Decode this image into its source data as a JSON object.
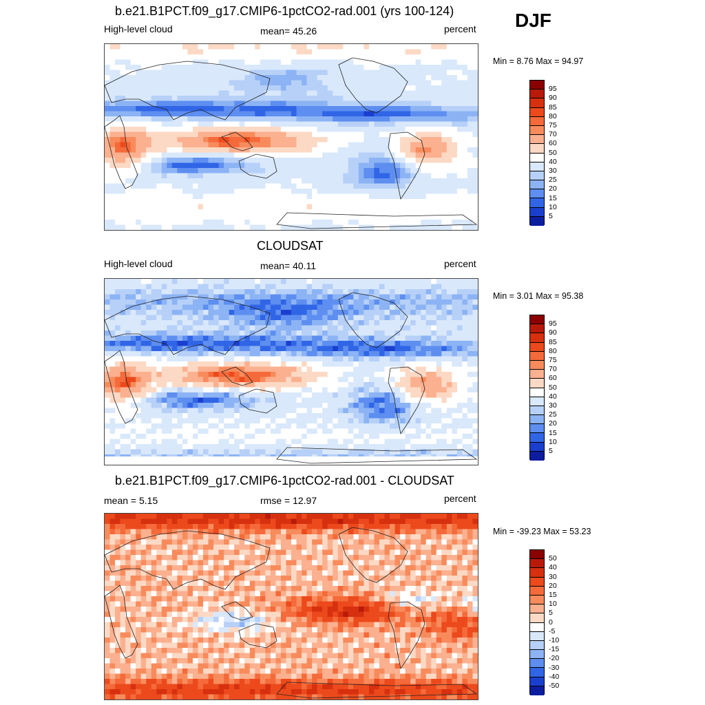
{
  "season": "DJF",
  "units": "percent",
  "panels": [
    {
      "title": "b.e21.B1PCT.f09_g17.CMIP6-1pctCO2-rad.001 (yrs 100-124)",
      "left_label": "High-level cloud",
      "center_label": "mean=  45.26",
      "right_label": "percent",
      "minmax": "Min =   8.76 Max =  94.97",
      "field": "model",
      "colorbar": {
        "levels": [
          "95",
          "90",
          "85",
          "80",
          "75",
          "70",
          "60",
          "50",
          "40",
          "30",
          "25",
          "20",
          "15",
          "10",
          "5"
        ],
        "colors": [
          "#8b0000",
          "#b81a0a",
          "#d6300f",
          "#ec4a1c",
          "#f56a3a",
          "#f88b5c",
          "#fbb08f",
          "#fcd9c4",
          "#ffffff",
          "#d9e8fb",
          "#b6d0f8",
          "#8cb3f4",
          "#5d8ef0",
          "#3065e6",
          "#1a3fcf",
          "#0c1d9f"
        ]
      }
    },
    {
      "title": "CLOUDSAT",
      "left_label": "High-level cloud",
      "center_label": "mean=  40.11",
      "right_label": "percent",
      "minmax": "Min =   3.01 Max =  95.38",
      "field": "obs",
      "colorbar": {
        "levels": [
          "95",
          "90",
          "85",
          "80",
          "75",
          "70",
          "60",
          "50",
          "40",
          "30",
          "25",
          "20",
          "15",
          "10",
          "5"
        ],
        "colors": [
          "#8b0000",
          "#b81a0a",
          "#d6300f",
          "#ec4a1c",
          "#f56a3a",
          "#f88b5c",
          "#fbb08f",
          "#fcd9c4",
          "#ffffff",
          "#d9e8fb",
          "#b6d0f8",
          "#8cb3f4",
          "#5d8ef0",
          "#3065e6",
          "#1a3fcf",
          "#0c1d9f"
        ]
      }
    },
    {
      "title": "b.e21.B1PCT.f09_g17.CMIP6-1pctCO2-rad.001 - CLOUDSAT",
      "left_label": "mean =   5.15",
      "center_label": "rmse =  12.97",
      "right_label": "percent",
      "minmax": "Min = -39.23 Max =  53.23",
      "field": "diff",
      "colorbar": {
        "levels": [
          "50",
          "40",
          "30",
          "20",
          "15",
          "10",
          "5",
          "0",
          "-5",
          "-10",
          "-15",
          "-20",
          "-30",
          "-40",
          "-50"
        ],
        "colors": [
          "#8b0000",
          "#b81a0a",
          "#d6300f",
          "#ec4a1c",
          "#f56a3a",
          "#f88b5c",
          "#fbb08f",
          "#fcd9c4",
          "#ffffff",
          "#d9e8fb",
          "#b6d0f8",
          "#8cb3f4",
          "#5d8ef0",
          "#3065e6",
          "#1a3fcf",
          "#0c1d9f"
        ]
      }
    }
  ]
}
